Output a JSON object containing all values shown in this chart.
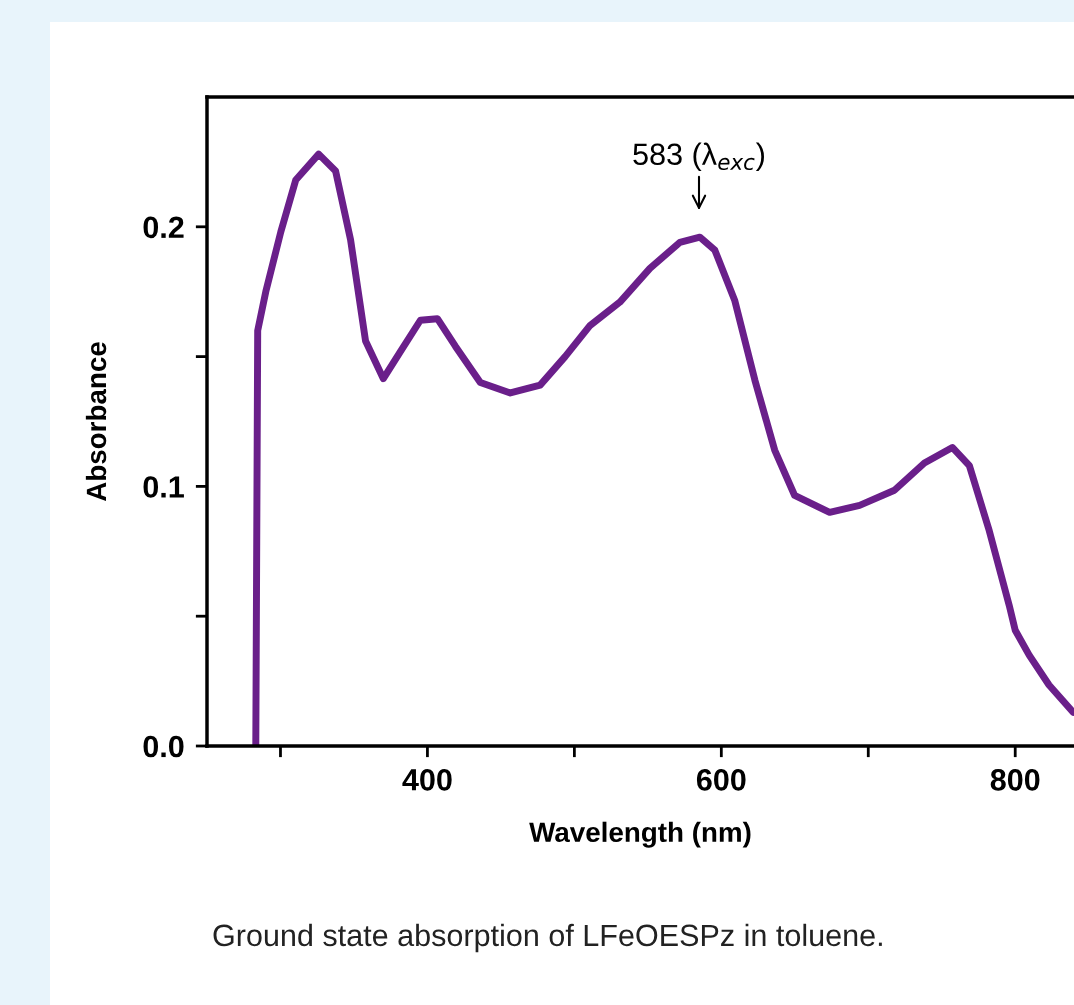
{
  "chart_data": {
    "type": "line",
    "xlabel": "Wavelength (nm)",
    "ylabel": "Absorbance",
    "x": [
      283.2,
      284.5,
      290,
      300.2,
      310.4,
      326,
      337.5,
      347.7,
      357.9,
      370,
      381.7,
      395.2,
      406.8,
      419,
      436,
      456.4,
      476.7,
      493.7,
      510.7,
      531,
      551.4,
      571.8,
      585.4,
      595.6,
      609.2,
      622.8,
      636.3,
      649.9,
      673.7,
      694.1,
      717.8,
      738.2,
      757.2,
      768.8,
      782.3,
      795.9,
      800,
      809.5,
      823,
      839.4
    ],
    "series": [
      {
        "color": "#6a1f8a",
        "values": [
          0,
          0.16,
          0.175,
          0.198,
          0.218,
          0.228,
          0.2215,
          0.195,
          0.156,
          0.1415,
          0.152,
          0.164,
          0.1646,
          0.154,
          0.14,
          0.136,
          0.139,
          0.15,
          0.162,
          0.171,
          0.184,
          0.194,
          0.196,
          0.191,
          0.1715,
          0.141,
          0.114,
          0.0965,
          0.09,
          0.0927,
          0.0985,
          0.109,
          0.115,
          0.108,
          0.083,
          0.0542,
          0.0446,
          0.035,
          0.0235,
          0.013
        ]
      }
    ],
    "xlim": [
      250,
      840
    ],
    "ylim": [
      0,
      0.25
    ],
    "xticks": [
      {
        "value": 300,
        "label": null
      },
      400,
      {
        "value": 500,
        "label": null
      },
      600,
      {
        "value": 700,
        "label": null
      },
      800
    ],
    "yticks": [
      {
        "value": 0,
        "label": "0.0"
      },
      {
        "value": 0.05,
        "label": null
      },
      0.1,
      {
        "value": 0.15,
        "label": null
      },
      0.2
    ],
    "grid": false,
    "legend": false,
    "marker": "none",
    "line_style": "solid",
    "annotations": [
      "583 (λ$_{exc}$)",
      "Ground state absorption of LFeOESPz in toluene."
    ]
  }
}
